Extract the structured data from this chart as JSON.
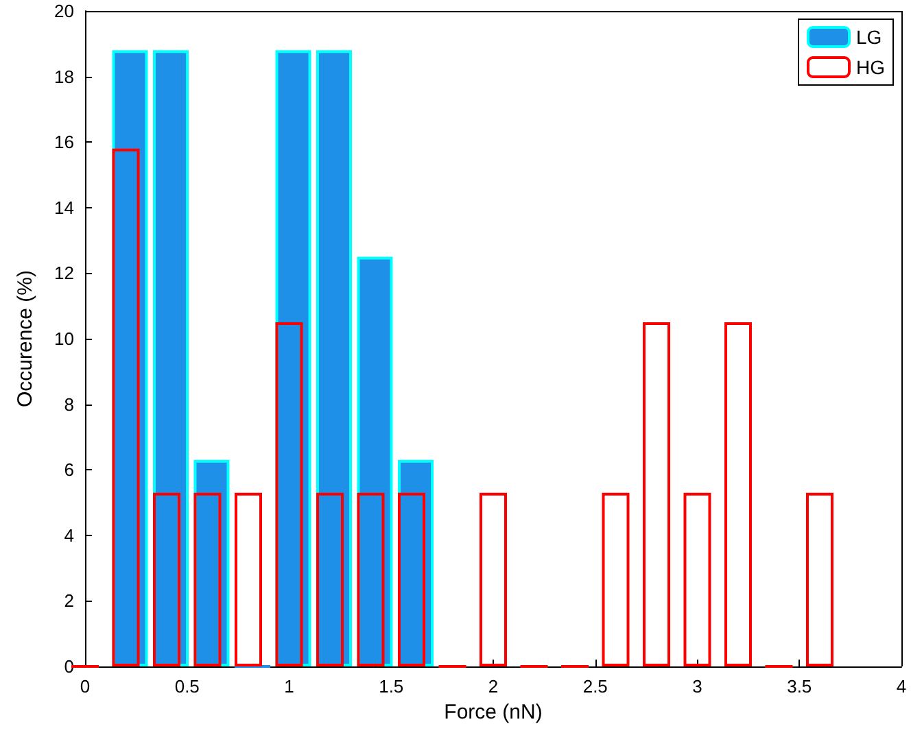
{
  "chart_data": {
    "type": "bar",
    "xlabel": "Force (nN)",
    "ylabel": "Occurence (%)",
    "series": [
      {
        "name": "LG",
        "color": "#1e90e8",
        "x": [
          0.2,
          0.4,
          0.6,
          0.8,
          1.0,
          1.2,
          1.4,
          1.6
        ],
        "values": [
          18.8,
          18.8,
          6.3,
          0,
          18.8,
          18.8,
          12.5,
          6.3
        ]
      },
      {
        "name": "HG",
        "color": "#ff0000",
        "x": [
          0,
          0.2,
          0.4,
          0.6,
          0.8,
          1.0,
          1.2,
          1.4,
          1.6,
          1.8,
          2.0,
          2.2,
          2.4,
          2.6,
          2.8,
          3.0,
          3.2,
          3.4,
          3.6
        ],
        "values": [
          0,
          15.8,
          5.3,
          5.3,
          5.3,
          10.5,
          5.3,
          5.3,
          5.3,
          0,
          5.3,
          0,
          0,
          5.3,
          10.5,
          5.3,
          10.5,
          0,
          5.3
        ]
      }
    ],
    "xlim": [
      0,
      4
    ],
    "xticks": [
      0,
      0.5,
      1,
      1.5,
      2,
      2.5,
      3,
      3.5,
      4
    ],
    "ylim": [
      0,
      20
    ],
    "yticks": [
      0,
      2,
      4,
      6,
      8,
      10,
      12,
      14,
      16,
      18,
      20
    ],
    "grid": false,
    "legend": "top right"
  }
}
